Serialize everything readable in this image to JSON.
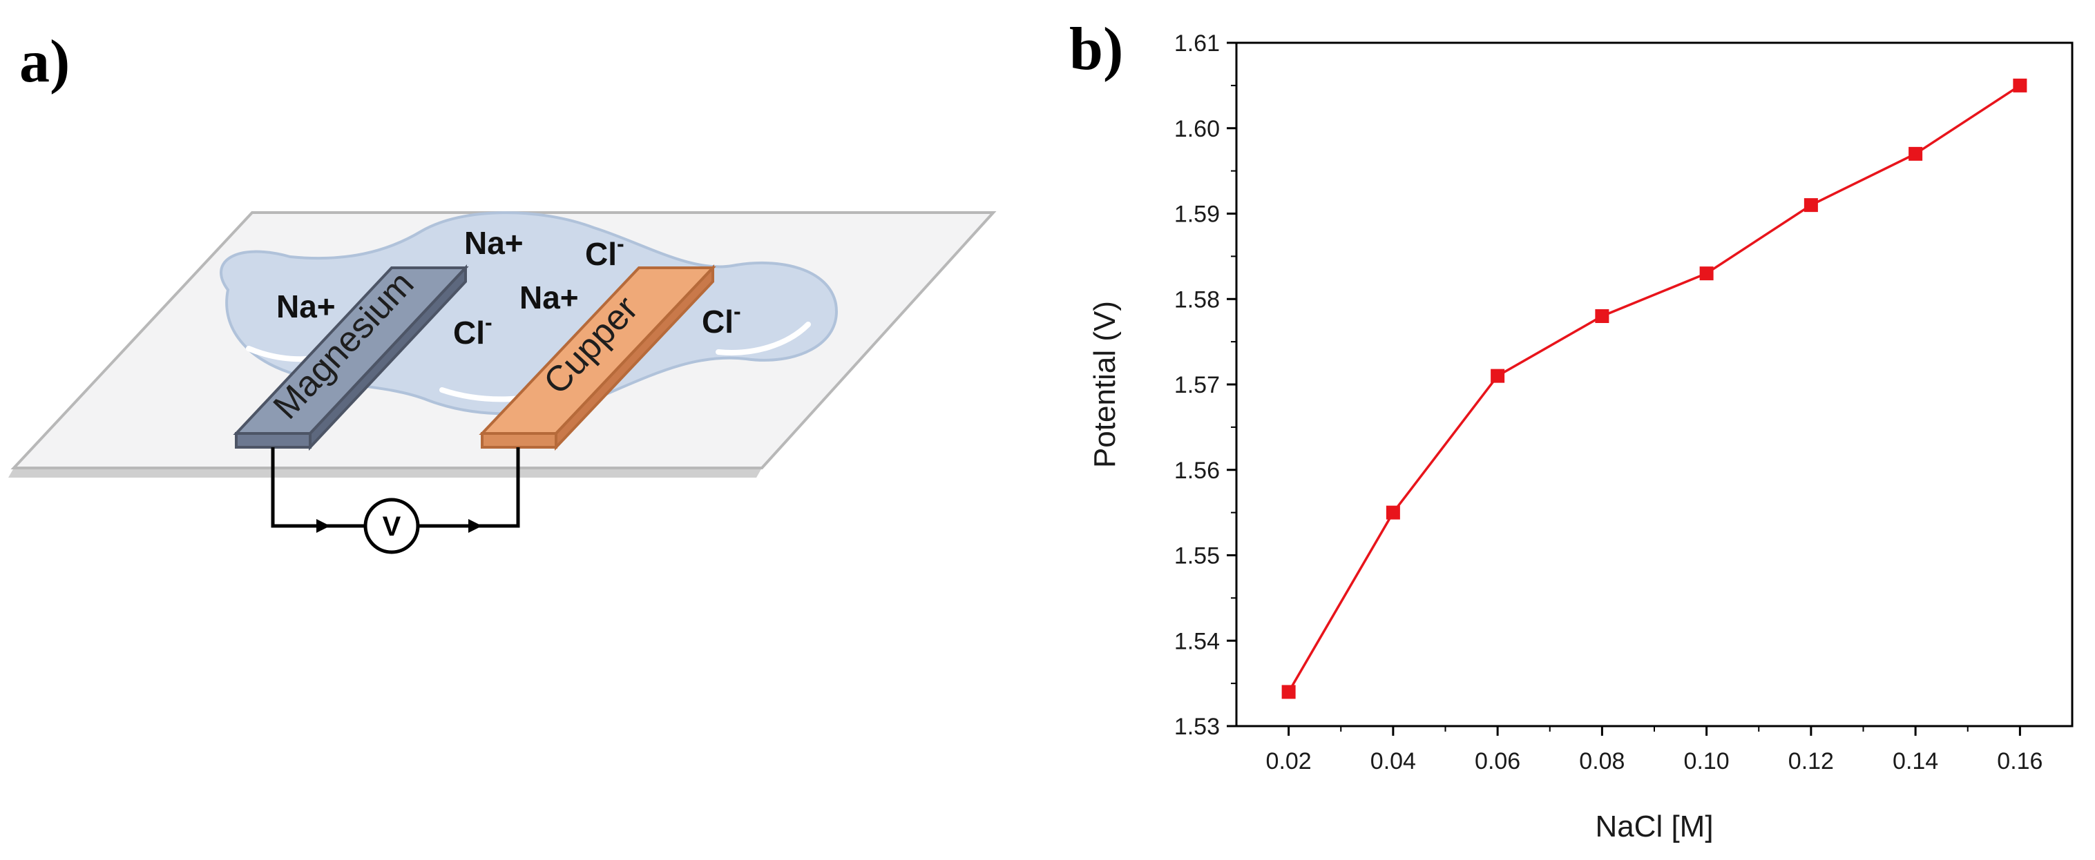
{
  "panel_a": {
    "label": "a)",
    "electrode_1": "Magnesium",
    "electrode_2": "Cupper",
    "ions": [
      "Na+",
      "Na+",
      "Na+",
      "Cl",
      "Cl",
      "Cl",
      "Cl"
    ],
    "chloride_charge": "-",
    "voltmeter": "V"
  },
  "chart_data": {
    "label": "b)",
    "type": "line",
    "x": [
      0.02,
      0.04,
      0.06,
      0.08,
      0.1,
      0.12,
      0.14,
      0.16
    ],
    "series": [
      {
        "values": [
          1.534,
          1.555,
          1.571,
          1.578,
          1.583,
          1.591,
          1.597,
          1.605
        ]
      }
    ],
    "xlabel": "NaCl [M]",
    "ylabel": "Potential (V)",
    "xlim": [
      0.01,
      0.17
    ],
    "ylim": [
      1.53,
      1.61
    ],
    "xticks": [
      "0.02",
      "0.04",
      "0.06",
      "0.08",
      "0.10",
      "0.12",
      "0.14",
      "0.16"
    ],
    "yticks": [
      "1.53",
      "1.54",
      "1.55",
      "1.56",
      "1.57",
      "1.58",
      "1.59",
      "1.60",
      "1.61"
    ],
    "grid": false,
    "marker": "square",
    "color": "#e8141b"
  }
}
